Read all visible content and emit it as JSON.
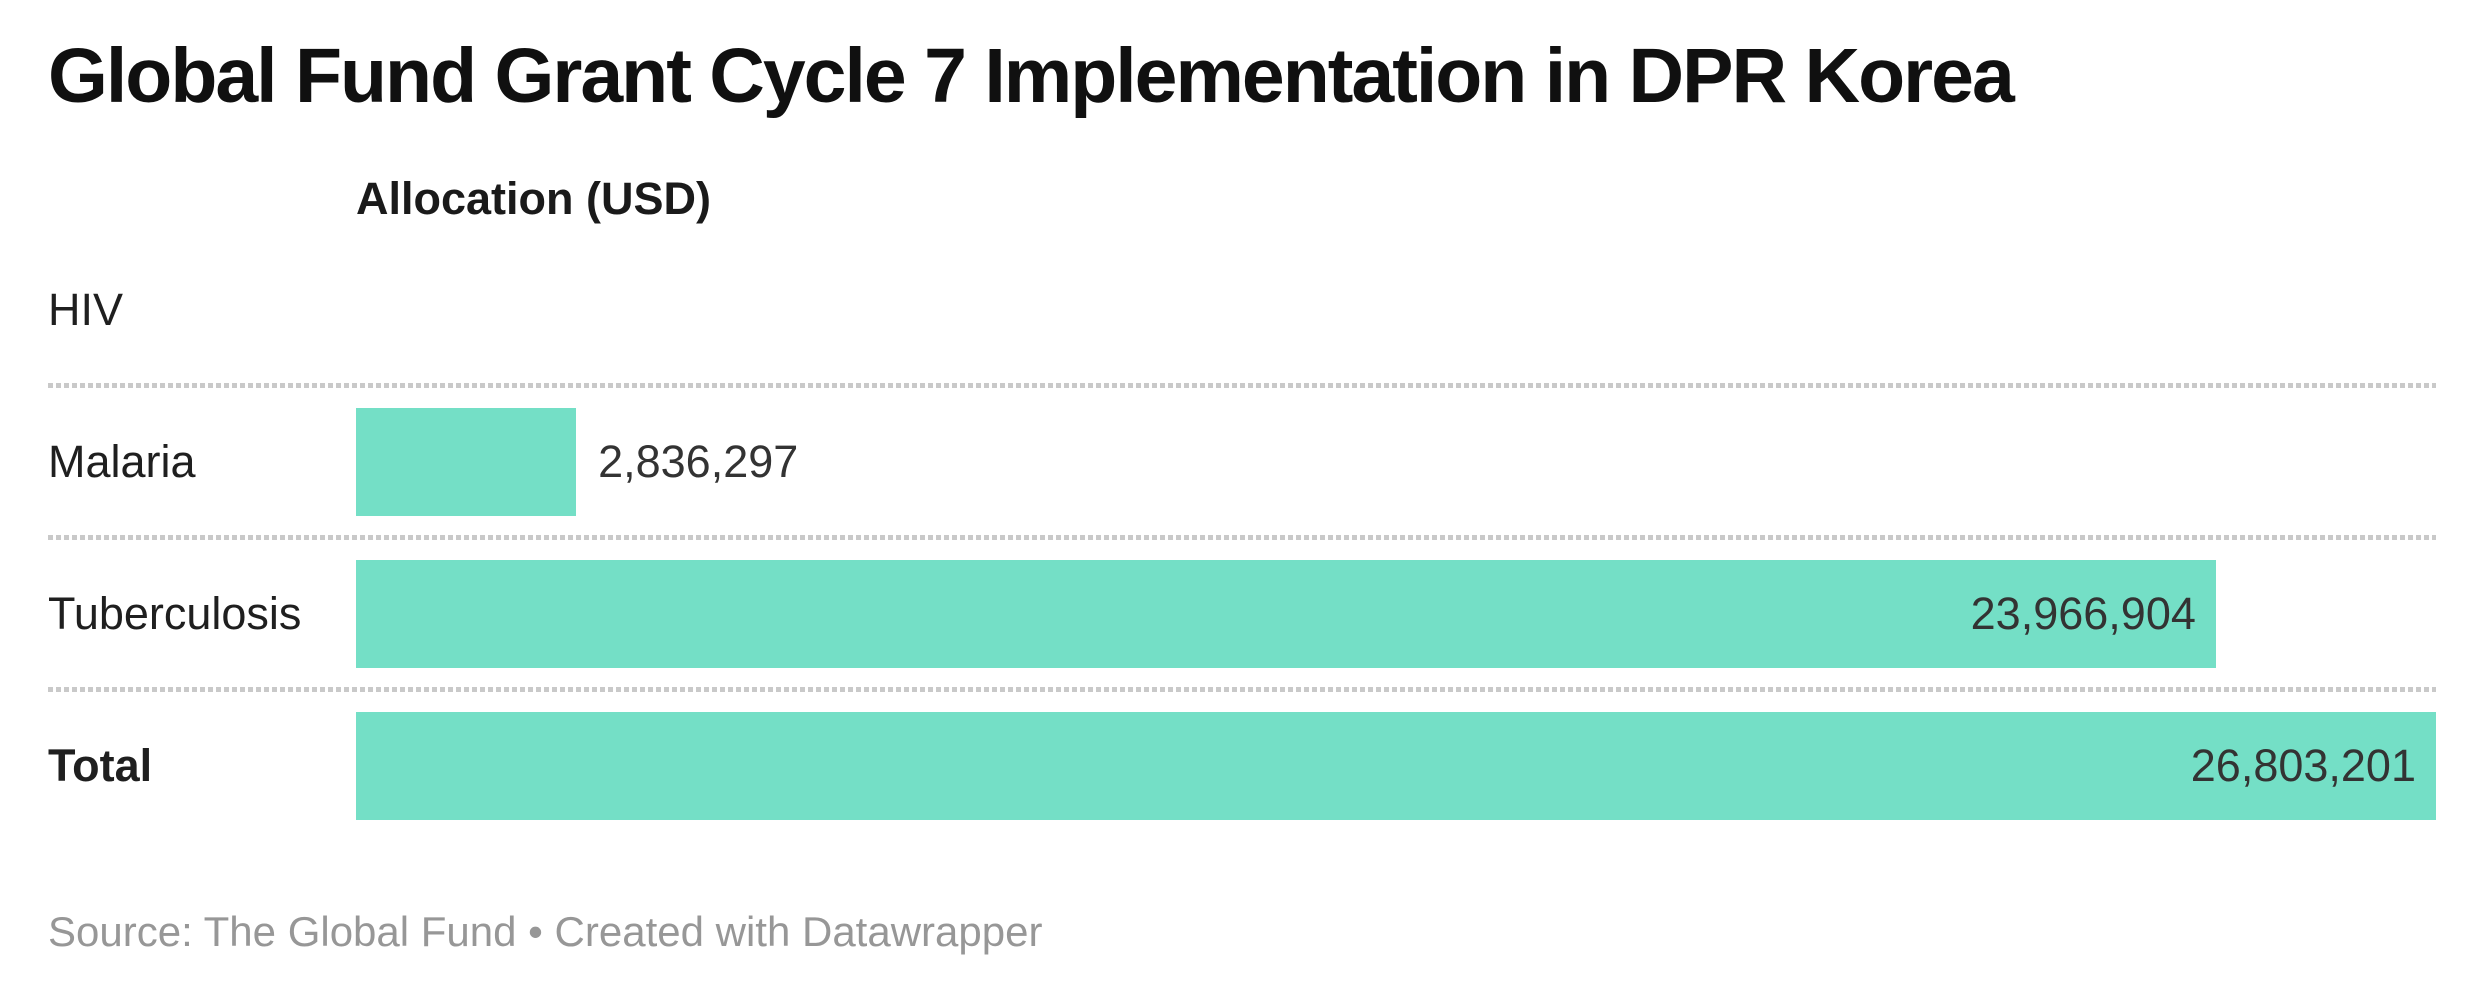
{
  "title": "Global Fund Grant Cycle 7 Implementation in DPR Korea",
  "table": {
    "value_header": "Allocation (USD)",
    "max_value": 26803201,
    "rows": [
      {
        "label": "HIV",
        "value": null,
        "display": "",
        "bold": false
      },
      {
        "label": "Malaria",
        "value": 2836297,
        "display": "2,836,297",
        "bold": false
      },
      {
        "label": "Tuberculosis",
        "value": 23966904,
        "display": "23,966,904",
        "bold": false
      },
      {
        "label": "Total",
        "value": 26803201,
        "display": "26,803,201",
        "bold": true
      }
    ]
  },
  "footer": {
    "source_text": "Source: The Global Fund • Created with Datawrapper"
  },
  "colors": {
    "bar": "#74dfc6",
    "separator": "#c9c9c9",
    "title_text": "#101010",
    "label_text": "#1f1f1f",
    "value_text": "#333333",
    "source_text": "#979797",
    "background": "#ffffff"
  },
  "chart_data": {
    "type": "bar",
    "orientation": "horizontal",
    "title": "Global Fund Grant Cycle 7 Implementation in DPR Korea",
    "value_axis_label": "Allocation (USD)",
    "categories": [
      "HIV",
      "Malaria",
      "Tuberculosis",
      "Total"
    ],
    "values": [
      null,
      2836297,
      23966904,
      26803201
    ],
    "value_labels": [
      "",
      "2,836,297",
      "23,966,904",
      "26,803,201"
    ],
    "xlim": [
      0,
      26803201
    ],
    "bar_color": "#74dfc6",
    "grid": false,
    "legend": "none",
    "row_separators": "dotted",
    "source": "Source: The Global Fund • Created with Datawrapper"
  }
}
